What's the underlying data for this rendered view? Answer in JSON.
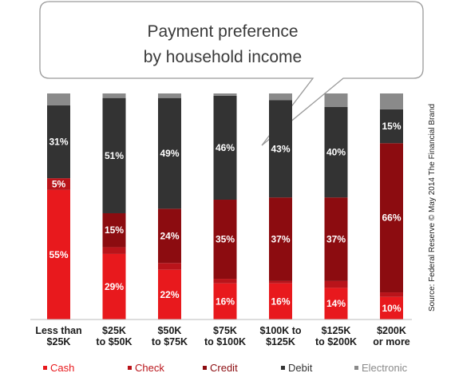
{
  "chart_data": {
    "type": "bar",
    "stacked": true,
    "normalized_percent": true,
    "title": "Payment preference by household income",
    "title_lines": [
      "Payment preference",
      "by household income"
    ],
    "categories": [
      "Less than $25K",
      "$25K to $50K",
      "$50K to $75K",
      "$75K to $100K",
      "$100K to $125K",
      "$125K to $200K",
      "$200K or more"
    ],
    "category_lines": [
      [
        "Less than",
        "$25K"
      ],
      [
        "$25K",
        "to $50K"
      ],
      [
        "$50K",
        "to $75K"
      ],
      [
        "$75K",
        "to $100K"
      ],
      [
        "$100K to",
        "$125K"
      ],
      [
        "$125K",
        "to $200K"
      ],
      [
        "$200K",
        "or more"
      ]
    ],
    "series": [
      {
        "name": "Cash",
        "color": "#e8191d",
        "values": [
          55,
          29,
          22,
          16,
          16,
          14,
          10
        ],
        "labels": [
          "55%",
          "29%",
          "22%",
          "16%",
          "16%",
          "14%",
          "10%"
        ]
      },
      {
        "name": "Check",
        "color": "#b9141a",
        "values": [
          5,
          3,
          3,
          2,
          1,
          3,
          2
        ],
        "labels": [
          "5%",
          "",
          "",
          "",
          "",
          "",
          ""
        ]
      },
      {
        "name": "Credit",
        "color": "#8c0c10",
        "values": [
          0,
          15,
          24,
          35,
          37,
          37,
          66
        ],
        "labels": [
          "",
          "15%",
          "24%",
          "35%",
          "37%",
          "37%",
          "66%"
        ]
      },
      {
        "name": "Debit",
        "color": "#333333",
        "values": [
          31,
          51,
          49,
          46,
          43,
          40,
          15
        ],
        "labels": [
          "31%",
          "51%",
          "49%",
          "46%",
          "43%",
          "40%",
          "15%"
        ]
      },
      {
        "name": "Electronic",
        "color": "#8a8a8a",
        "values": [
          5,
          2,
          2,
          1,
          3,
          6,
          7
        ],
        "labels": [
          "",
          "",
          "",
          "",
          "",
          "",
          ""
        ]
      }
    ],
    "ylim": [
      0,
      100
    ],
    "legend": {
      "position": "bottom"
    },
    "grid": false,
    "source": "Source: Federal Reserve © May 2014 The Financial Brand"
  }
}
